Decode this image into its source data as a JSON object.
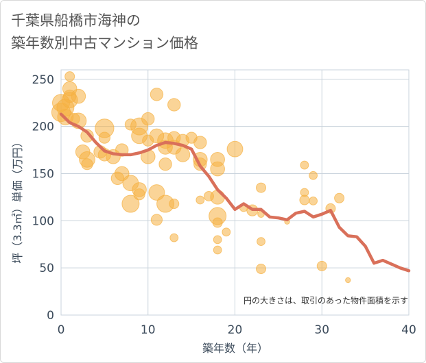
{
  "chart_data": {
    "type": "scatter",
    "title_lines": [
      "千葉県船橋市海神の",
      "築年数別中古マンション価格"
    ],
    "xlabel": "築年数（年）",
    "ylabel": "坪（3.3㎡）単価（万円）",
    "note": "円の大きさは、取引のあった物件面積を示す",
    "xlim": [
      0,
      40
    ],
    "ylim": [
      0,
      260
    ],
    "xticks": [
      0,
      10,
      20,
      30,
      40
    ],
    "yticks": [
      0,
      50,
      100,
      150,
      200,
      250
    ],
    "grid": true,
    "colors": {
      "bubble": "#f5b041",
      "line": "#d9705a",
      "grid": "#c9d3dc",
      "plot_border": "#c9d3dc"
    },
    "scatter_points": [
      {
        "x": 0,
        "y": 225,
        "s": 10
      },
      {
        "x": 0,
        "y": 215,
        "s": 11
      },
      {
        "x": 0.5,
        "y": 210,
        "s": 9
      },
      {
        "x": 0.5,
        "y": 220,
        "s": 10
      },
      {
        "x": 1,
        "y": 253,
        "s": 5
      },
      {
        "x": 1,
        "y": 240,
        "s": 8
      },
      {
        "x": 1,
        "y": 232,
        "s": 7
      },
      {
        "x": 1,
        "y": 228,
        "s": 9
      },
      {
        "x": 1.5,
        "y": 208,
        "s": 6
      },
      {
        "x": 2,
        "y": 232,
        "s": 8
      },
      {
        "x": 2,
        "y": 206,
        "s": 9
      },
      {
        "x": 2.5,
        "y": 173,
        "s": 8
      },
      {
        "x": 3,
        "y": 190,
        "s": 7
      },
      {
        "x": 3,
        "y": 165,
        "s": 9
      },
      {
        "x": 3,
        "y": 160,
        "s": 6
      },
      {
        "x": 4.5,
        "y": 173,
        "s": 7
      },
      {
        "x": 5,
        "y": 198,
        "s": 11
      },
      {
        "x": 5,
        "y": 188,
        "s": 6
      },
      {
        "x": 5,
        "y": 170,
        "s": 7
      },
      {
        "x": 6,
        "y": 168,
        "s": 8
      },
      {
        "x": 6.5,
        "y": 145,
        "s": 7
      },
      {
        "x": 7,
        "y": 175,
        "s": 7
      },
      {
        "x": 7,
        "y": 150,
        "s": 8
      },
      {
        "x": 8,
        "y": 202,
        "s": 6
      },
      {
        "x": 8,
        "y": 140,
        "s": 9
      },
      {
        "x": 8,
        "y": 118,
        "s": 10
      },
      {
        "x": 9,
        "y": 200,
        "s": 10
      },
      {
        "x": 9,
        "y": 190,
        "s": 9
      },
      {
        "x": 9,
        "y": 133,
        "s": 8
      },
      {
        "x": 9,
        "y": 128,
        "s": 6
      },
      {
        "x": 10,
        "y": 208,
        "s": 7
      },
      {
        "x": 10,
        "y": 185,
        "s": 6
      },
      {
        "x": 10,
        "y": 168,
        "s": 8
      },
      {
        "x": 11,
        "y": 234,
        "s": 7
      },
      {
        "x": 11,
        "y": 190,
        "s": 8
      },
      {
        "x": 11,
        "y": 130,
        "s": 9
      },
      {
        "x": 11,
        "y": 101,
        "s": 6
      },
      {
        "x": 12,
        "y": 185,
        "s": 9
      },
      {
        "x": 12,
        "y": 178,
        "s": 8
      },
      {
        "x": 12,
        "y": 160,
        "s": 7
      },
      {
        "x": 12,
        "y": 118,
        "s": 10
      },
      {
        "x": 13,
        "y": 223,
        "s": 7
      },
      {
        "x": 13,
        "y": 188,
        "s": 7
      },
      {
        "x": 13,
        "y": 178,
        "s": 8
      },
      {
        "x": 13,
        "y": 118,
        "s": 5
      },
      {
        "x": 13,
        "y": 82,
        "s": 4
      },
      {
        "x": 14,
        "y": 185,
        "s": 7
      },
      {
        "x": 14,
        "y": 170,
        "s": 8
      },
      {
        "x": 15,
        "y": 188,
        "s": 6
      },
      {
        "x": 16,
        "y": 183,
        "s": 7
      },
      {
        "x": 16,
        "y": 165,
        "s": 8
      },
      {
        "x": 16,
        "y": 160,
        "s": 7
      },
      {
        "x": 16,
        "y": 122,
        "s": 4
      },
      {
        "x": 17,
        "y": 126,
        "s": 5
      },
      {
        "x": 18,
        "y": 165,
        "s": 8
      },
      {
        "x": 18,
        "y": 155,
        "s": 8
      },
      {
        "x": 18,
        "y": 125,
        "s": 8
      },
      {
        "x": 18,
        "y": 105,
        "s": 10
      },
      {
        "x": 18,
        "y": 98,
        "s": 5
      },
      {
        "x": 18,
        "y": 80,
        "s": 4
      },
      {
        "x": 18,
        "y": 69,
        "s": 4
      },
      {
        "x": 19,
        "y": 88,
        "s": 4
      },
      {
        "x": 20,
        "y": 176,
        "s": 9
      },
      {
        "x": 21,
        "y": 114,
        "s": 4
      },
      {
        "x": 22,
        "y": 111,
        "s": 6
      },
      {
        "x": 23,
        "y": 135,
        "s": 5
      },
      {
        "x": 23,
        "y": 107,
        "s": 3
      },
      {
        "x": 23,
        "y": 78,
        "s": 4
      },
      {
        "x": 23,
        "y": 49,
        "s": 5
      },
      {
        "x": 26,
        "y": 99,
        "s": 2
      },
      {
        "x": 28,
        "y": 159,
        "s": 4
      },
      {
        "x": 28,
        "y": 130,
        "s": 4
      },
      {
        "x": 28,
        "y": 122,
        "s": 5
      },
      {
        "x": 29,
        "y": 148,
        "s": 4
      },
      {
        "x": 29,
        "y": 121,
        "s": 4
      },
      {
        "x": 30,
        "y": 52,
        "s": 5
      },
      {
        "x": 31,
        "y": 113,
        "s": 5
      },
      {
        "x": 32,
        "y": 124,
        "s": 5
      },
      {
        "x": 33,
        "y": 37,
        "s": 2
      }
    ],
    "series": [
      {
        "x": [
          0,
          1,
          2,
          3,
          4,
          5,
          6,
          7,
          8,
          9,
          10,
          11,
          12,
          13,
          14,
          15,
          16,
          17,
          18,
          19,
          20,
          21,
          22,
          23,
          24,
          25,
          26,
          27,
          28,
          29,
          30,
          31,
          32,
          33,
          34,
          35,
          36,
          37,
          38,
          39,
          40
        ],
        "values": [
          213,
          204,
          200,
          194,
          183,
          174,
          171,
          170,
          170,
          172,
          175,
          180,
          183,
          182,
          180,
          176,
          158,
          147,
          133,
          124,
          112,
          118,
          112,
          112,
          104,
          103,
          101,
          108,
          110,
          104,
          107,
          111,
          93,
          84,
          83,
          73,
          55,
          58,
          54,
          50,
          47
        ]
      }
    ]
  }
}
